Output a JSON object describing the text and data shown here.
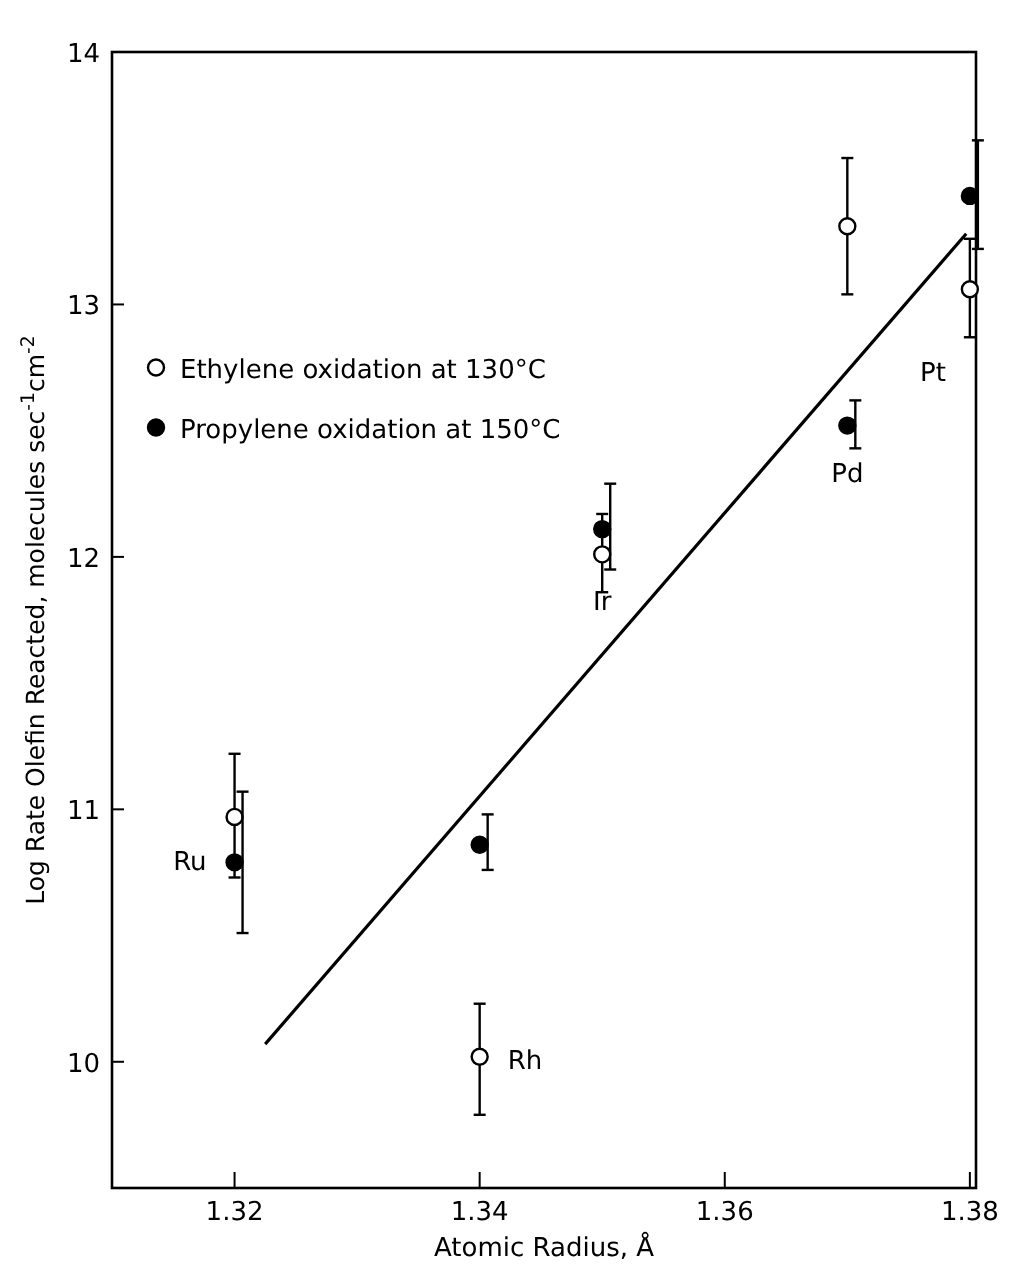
{
  "chart_data": {
    "type": "scatter",
    "xlabel": "Atomic Radius, Å",
    "ylabel": "Log Rate Olefin Reacted, molecules sec$^{-1}$cm$^{-2}$",
    "xlim": [
      1.31,
      1.3805
    ],
    "xticks": [
      1.32,
      1.34,
      1.36,
      1.38
    ],
    "ylim": [
      9.5,
      14
    ],
    "yticks": [
      10,
      11,
      12,
      13,
      14
    ],
    "grid": false,
    "legend": "left",
    "series": [
      {
        "name": "Ethylene oxidation at 130°C",
        "color": "#000000",
        "marker": "circle",
        "x": [
          1.32,
          1.34,
          1.35,
          1.37,
          1.38
        ],
        "values": [
          10.97,
          10.02,
          12.01,
          13.31,
          13.06
        ],
        "errors": [
          [
            10.73,
            11.22
          ],
          [
            9.79,
            10.23
          ],
          [
            11.86,
            12.17
          ],
          [
            13.04,
            13.58
          ],
          [
            12.87,
            13.26
          ]
        ]
      },
      {
        "name": "Propylene oxidation at 150°C",
        "color": "#000000",
        "marker": "circle",
        "x": [
          1.32,
          1.34,
          1.35,
          1.37,
          1.38
        ],
        "values": [
          10.79,
          10.86,
          12.11,
          12.52,
          13.43
        ],
        "errors": [
          [
            10.51,
            11.07
          ],
          [
            10.76,
            10.98
          ],
          [
            11.95,
            12.29
          ],
          [
            12.43,
            12.62
          ],
          [
            13.22,
            13.65
          ]
        ]
      },
      {
        "type": "line",
        "color": "#000000",
        "x": [
          1.3225,
          1.3797
        ],
        "values": [
          10.07,
          13.28
        ]
      }
    ],
    "annotations": [
      {
        "text": "Ru",
        "x": 1.32,
        "y": 10.79
      },
      {
        "text": "Rh",
        "x": 1.34,
        "y": 10.02
      },
      {
        "text": "Ir",
        "x": 1.35,
        "y": 12.01
      },
      {
        "text": "Pd",
        "x": 1.37,
        "y": 12.52
      },
      {
        "text": "Pt",
        "x": 1.38,
        "y": 13.06
      }
    ]
  }
}
